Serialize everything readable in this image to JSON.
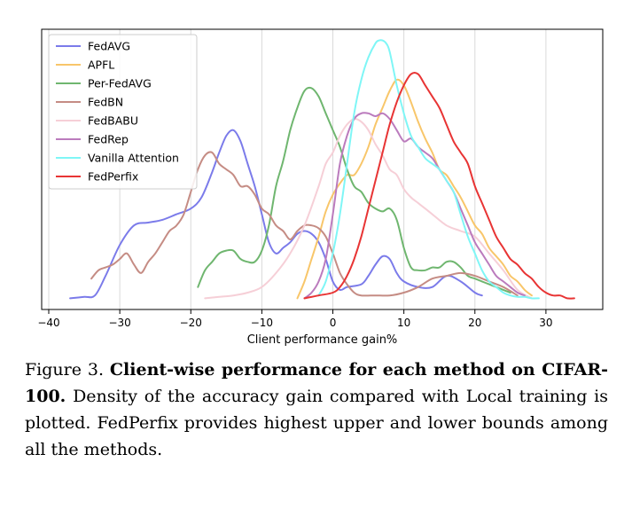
{
  "chart_data": {
    "type": "line",
    "title": "",
    "xlabel": "Client performance gain%",
    "ylabel": "",
    "xlim": [
      -41,
      38
    ],
    "ylim": [
      0,
      1.0
    ],
    "xticks": [
      -40,
      -30,
      -20,
      -10,
      0,
      10,
      20,
      30
    ],
    "xtick_labels": [
      "−40",
      "−30",
      "−20",
      "−10",
      "0",
      "10",
      "20",
      "30"
    ],
    "grid": "vertical",
    "legend_position": "top-left",
    "series": [
      {
        "name": "FedAVG",
        "color": "#7b7bea",
        "x": [
          -37,
          -35,
          -33.5,
          -32,
          -30,
          -28,
          -26,
          -24,
          -22,
          -20,
          -18.5,
          -17,
          -16,
          -15,
          -14,
          -13,
          -12,
          -11,
          -10,
          -9,
          -8,
          -7,
          -6,
          -5,
          -4,
          -3,
          -2,
          -1,
          0,
          1,
          2,
          4,
          5,
          6,
          7,
          8,
          9,
          10,
          12,
          14,
          16,
          18,
          20,
          21
        ],
        "y": [
          0.04,
          0.045,
          0.05,
          0.12,
          0.23,
          0.3,
          0.31,
          0.32,
          0.34,
          0.36,
          0.4,
          0.49,
          0.56,
          0.62,
          0.64,
          0.6,
          0.52,
          0.44,
          0.34,
          0.24,
          0.2,
          0.22,
          0.24,
          0.27,
          0.28,
          0.27,
          0.24,
          0.18,
          0.1,
          0.07,
          0.08,
          0.09,
          0.12,
          0.16,
          0.19,
          0.18,
          0.13,
          0.1,
          0.08,
          0.08,
          0.12,
          0.1,
          0.06,
          0.05
        ]
      },
      {
        "name": "APFL",
        "color": "#f8c66a",
        "x": [
          -5,
          -4,
          -3,
          -2,
          -1,
          0,
          1,
          2,
          3,
          4,
          5,
          6,
          7,
          8,
          9,
          10,
          11,
          12,
          13,
          14,
          15,
          16,
          17,
          18,
          19,
          20,
          21,
          22,
          23,
          24,
          25,
          26,
          27,
          28
        ],
        "y": [
          0.04,
          0.1,
          0.18,
          0.26,
          0.35,
          0.41,
          0.45,
          0.48,
          0.48,
          0.52,
          0.58,
          0.66,
          0.72,
          0.78,
          0.82,
          0.8,
          0.74,
          0.67,
          0.61,
          0.56,
          0.5,
          0.48,
          0.44,
          0.4,
          0.35,
          0.3,
          0.27,
          0.22,
          0.19,
          0.16,
          0.12,
          0.1,
          0.07,
          0.05
        ]
      },
      {
        "name": "Per-FedAVG",
        "color": "#6fb66f",
        "x": [
          -19,
          -18,
          -17,
          -16,
          -15,
          -14,
          -13,
          -12,
          -11,
          -10,
          -9,
          -8,
          -7,
          -6,
          -5,
          -4,
          -3,
          -2,
          -1,
          0,
          1,
          2,
          3,
          4,
          5,
          6,
          7,
          8,
          9,
          10,
          11,
          12,
          13,
          14,
          15,
          16,
          17,
          18,
          19,
          20,
          21,
          22,
          23,
          24,
          25
        ],
        "y": [
          0.08,
          0.14,
          0.17,
          0.2,
          0.21,
          0.21,
          0.18,
          0.17,
          0.17,
          0.21,
          0.3,
          0.44,
          0.53,
          0.64,
          0.72,
          0.78,
          0.79,
          0.76,
          0.7,
          0.64,
          0.58,
          0.5,
          0.44,
          0.42,
          0.38,
          0.36,
          0.35,
          0.36,
          0.32,
          0.22,
          0.15,
          0.14,
          0.14,
          0.15,
          0.15,
          0.17,
          0.17,
          0.15,
          0.12,
          0.11,
          0.1,
          0.09,
          0.08,
          0.07,
          0.06
        ]
      },
      {
        "name": "FedBN",
        "color": "#c58c84",
        "x": [
          -34,
          -33,
          -32,
          -31,
          -30,
          -29,
          -28,
          -27,
          -26,
          -25,
          -24,
          -23,
          -22,
          -21,
          -20,
          -19,
          -18,
          -17,
          -16,
          -15,
          -14,
          -13,
          -12,
          -11,
          -10,
          -9,
          -8,
          -7,
          -6,
          -5,
          -4,
          -3,
          -2,
          -1,
          0,
          1,
          2,
          3,
          4,
          6,
          8,
          10,
          12,
          14,
          16,
          18,
          20,
          22,
          24,
          26
        ],
        "y": [
          0.11,
          0.14,
          0.15,
          0.16,
          0.18,
          0.2,
          0.16,
          0.13,
          0.17,
          0.2,
          0.24,
          0.28,
          0.3,
          0.34,
          0.42,
          0.5,
          0.55,
          0.56,
          0.52,
          0.5,
          0.48,
          0.44,
          0.44,
          0.41,
          0.36,
          0.34,
          0.3,
          0.28,
          0.25,
          0.28,
          0.3,
          0.3,
          0.29,
          0.26,
          0.2,
          0.13,
          0.09,
          0.06,
          0.05,
          0.05,
          0.05,
          0.06,
          0.08,
          0.11,
          0.12,
          0.13,
          0.12,
          0.1,
          0.08,
          0.05
        ]
      },
      {
        "name": "FedBABU",
        "color": "#f6cfd7",
        "x": [
          -18,
          -16,
          -14,
          -12,
          -10,
          -8,
          -6,
          -4,
          -2,
          -1,
          0,
          1,
          2,
          3,
          4,
          5,
          6,
          7,
          8,
          9,
          10,
          11,
          12,
          13,
          14,
          16,
          18,
          20,
          22,
          24,
          26,
          28
        ],
        "y": [
          0.04,
          0.045,
          0.05,
          0.06,
          0.08,
          0.13,
          0.2,
          0.3,
          0.44,
          0.52,
          0.56,
          0.62,
          0.66,
          0.68,
          0.67,
          0.64,
          0.59,
          0.55,
          0.5,
          0.48,
          0.43,
          0.4,
          0.38,
          0.36,
          0.34,
          0.3,
          0.28,
          0.26,
          0.2,
          0.14,
          0.07,
          0.04
        ]
      },
      {
        "name": "FedRep",
        "color": "#bb7bbd",
        "x": [
          -4,
          -3,
          -2,
          -1,
          0,
          1,
          2,
          3,
          4,
          5,
          6,
          7,
          8,
          9,
          10,
          11,
          12,
          13,
          14,
          15,
          16,
          17,
          18,
          19,
          20,
          21,
          22,
          23,
          24,
          25,
          26,
          27
        ],
        "y": [
          0.04,
          0.06,
          0.1,
          0.18,
          0.34,
          0.52,
          0.62,
          0.68,
          0.7,
          0.7,
          0.69,
          0.7,
          0.68,
          0.64,
          0.6,
          0.61,
          0.58,
          0.56,
          0.54,
          0.5,
          0.46,
          0.42,
          0.36,
          0.3,
          0.24,
          0.2,
          0.16,
          0.12,
          0.1,
          0.08,
          0.06,
          0.05
        ]
      },
      {
        "name": "Vanilla Attention",
        "color": "#7ff6f6",
        "x": [
          -2,
          -1,
          0,
          1,
          2,
          3,
          4,
          5,
          6,
          6.5,
          7,
          7.5,
          8,
          9,
          10,
          11,
          12,
          13,
          14,
          15,
          16,
          17,
          18,
          19,
          20,
          21,
          22,
          23,
          24,
          25,
          26,
          27,
          28,
          29
        ],
        "y": [
          0.05,
          0.1,
          0.2,
          0.34,
          0.52,
          0.7,
          0.82,
          0.9,
          0.95,
          0.96,
          0.96,
          0.95,
          0.92,
          0.8,
          0.7,
          0.62,
          0.58,
          0.54,
          0.52,
          0.5,
          0.46,
          0.42,
          0.34,
          0.26,
          0.2,
          0.14,
          0.1,
          0.08,
          0.06,
          0.05,
          0.045,
          0.045,
          0.04,
          0.04
        ]
      },
      {
        "name": "FedPerfix",
        "color": "#e83434",
        "x": [
          -4,
          -2,
          0,
          1,
          2,
          3,
          4,
          5,
          6,
          7,
          8,
          9,
          10,
          11,
          12,
          13,
          14,
          15,
          16,
          17,
          18,
          19,
          20,
          21,
          22,
          23,
          24,
          25,
          26,
          27,
          28,
          29,
          30,
          31,
          32,
          33,
          34
        ],
        "y": [
          0.04,
          0.05,
          0.06,
          0.08,
          0.12,
          0.18,
          0.26,
          0.36,
          0.46,
          0.56,
          0.66,
          0.74,
          0.8,
          0.84,
          0.84,
          0.8,
          0.76,
          0.72,
          0.66,
          0.6,
          0.56,
          0.52,
          0.44,
          0.38,
          0.32,
          0.26,
          0.22,
          0.18,
          0.16,
          0.13,
          0.11,
          0.08,
          0.06,
          0.05,
          0.05,
          0.04,
          0.04
        ]
      }
    ]
  },
  "caption": {
    "figure_label": "Figure 3.",
    "bold_title": "Client-wise performance for each method on CIFAR-100.",
    "body": "Density of the accuracy gain compared with Local training is plotted.  FedPerfix provides highest upper and lower bounds among all the methods."
  }
}
